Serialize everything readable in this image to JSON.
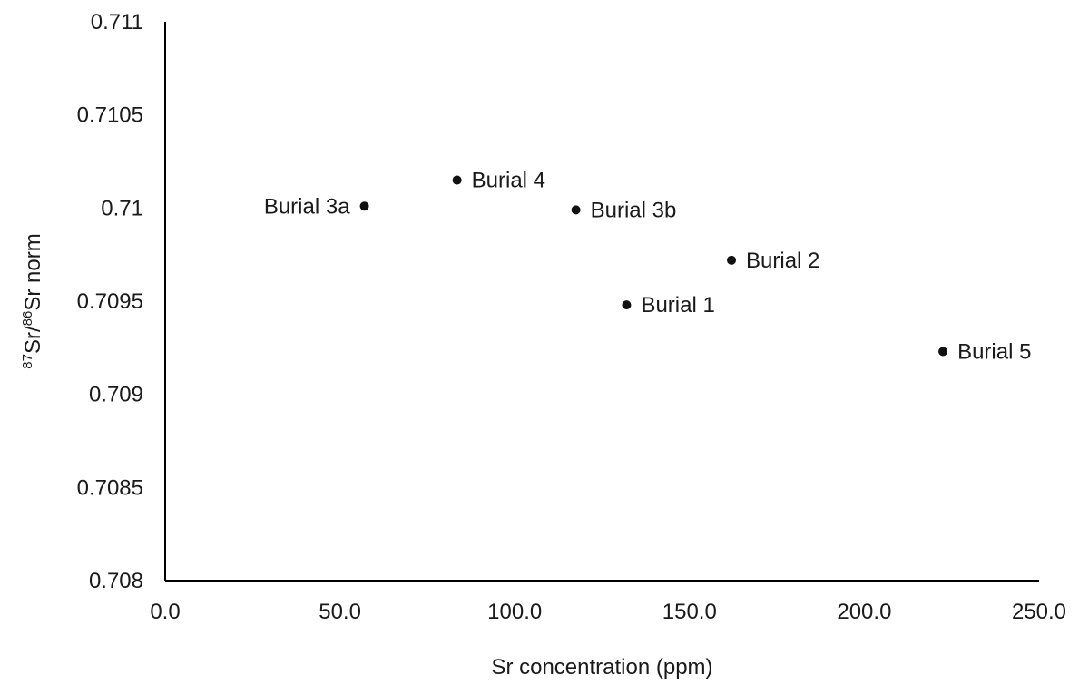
{
  "chart_data": {
    "type": "scatter",
    "title": "",
    "xlabel": "Sr concentration (ppm)",
    "ylabel": {
      "sup1": "87",
      "part1": "Sr/",
      "sup2": "86",
      "part2": "Sr norm"
    },
    "xlim": [
      0,
      250
    ],
    "ylim": [
      0.708,
      0.711
    ],
    "x_ticks": [
      0,
      50,
      100,
      150,
      200,
      250
    ],
    "x_tick_labels": [
      "0.0",
      "50.0",
      "100.0",
      "150.0",
      "200.0",
      "250.0"
    ],
    "y_ticks": [
      0.708,
      0.7085,
      0.709,
      0.7095,
      0.71,
      0.7105,
      0.711
    ],
    "y_tick_labels": [
      "0.708",
      "0.7085",
      "0.709",
      "0.7095",
      "0.71",
      "0.7105",
      "0.711"
    ],
    "grid": false,
    "legend": "none",
    "marker_color": "#111111",
    "points": [
      {
        "label": "Burial 3a",
        "x": 57.0,
        "y": 0.71001,
        "label_side": "left"
      },
      {
        "label": "Burial 4",
        "x": 83.5,
        "y": 0.71015,
        "label_side": "right"
      },
      {
        "label": "Burial 3b",
        "x": 117.5,
        "y": 0.70999,
        "label_side": "right"
      },
      {
        "label": "Burial 2",
        "x": 162.0,
        "y": 0.70972,
        "label_side": "right"
      },
      {
        "label": "Burial 1",
        "x": 132.0,
        "y": 0.70948,
        "label_side": "right"
      },
      {
        "label": "Burial 5",
        "x": 222.5,
        "y": 0.70923,
        "label_side": "right"
      }
    ]
  }
}
